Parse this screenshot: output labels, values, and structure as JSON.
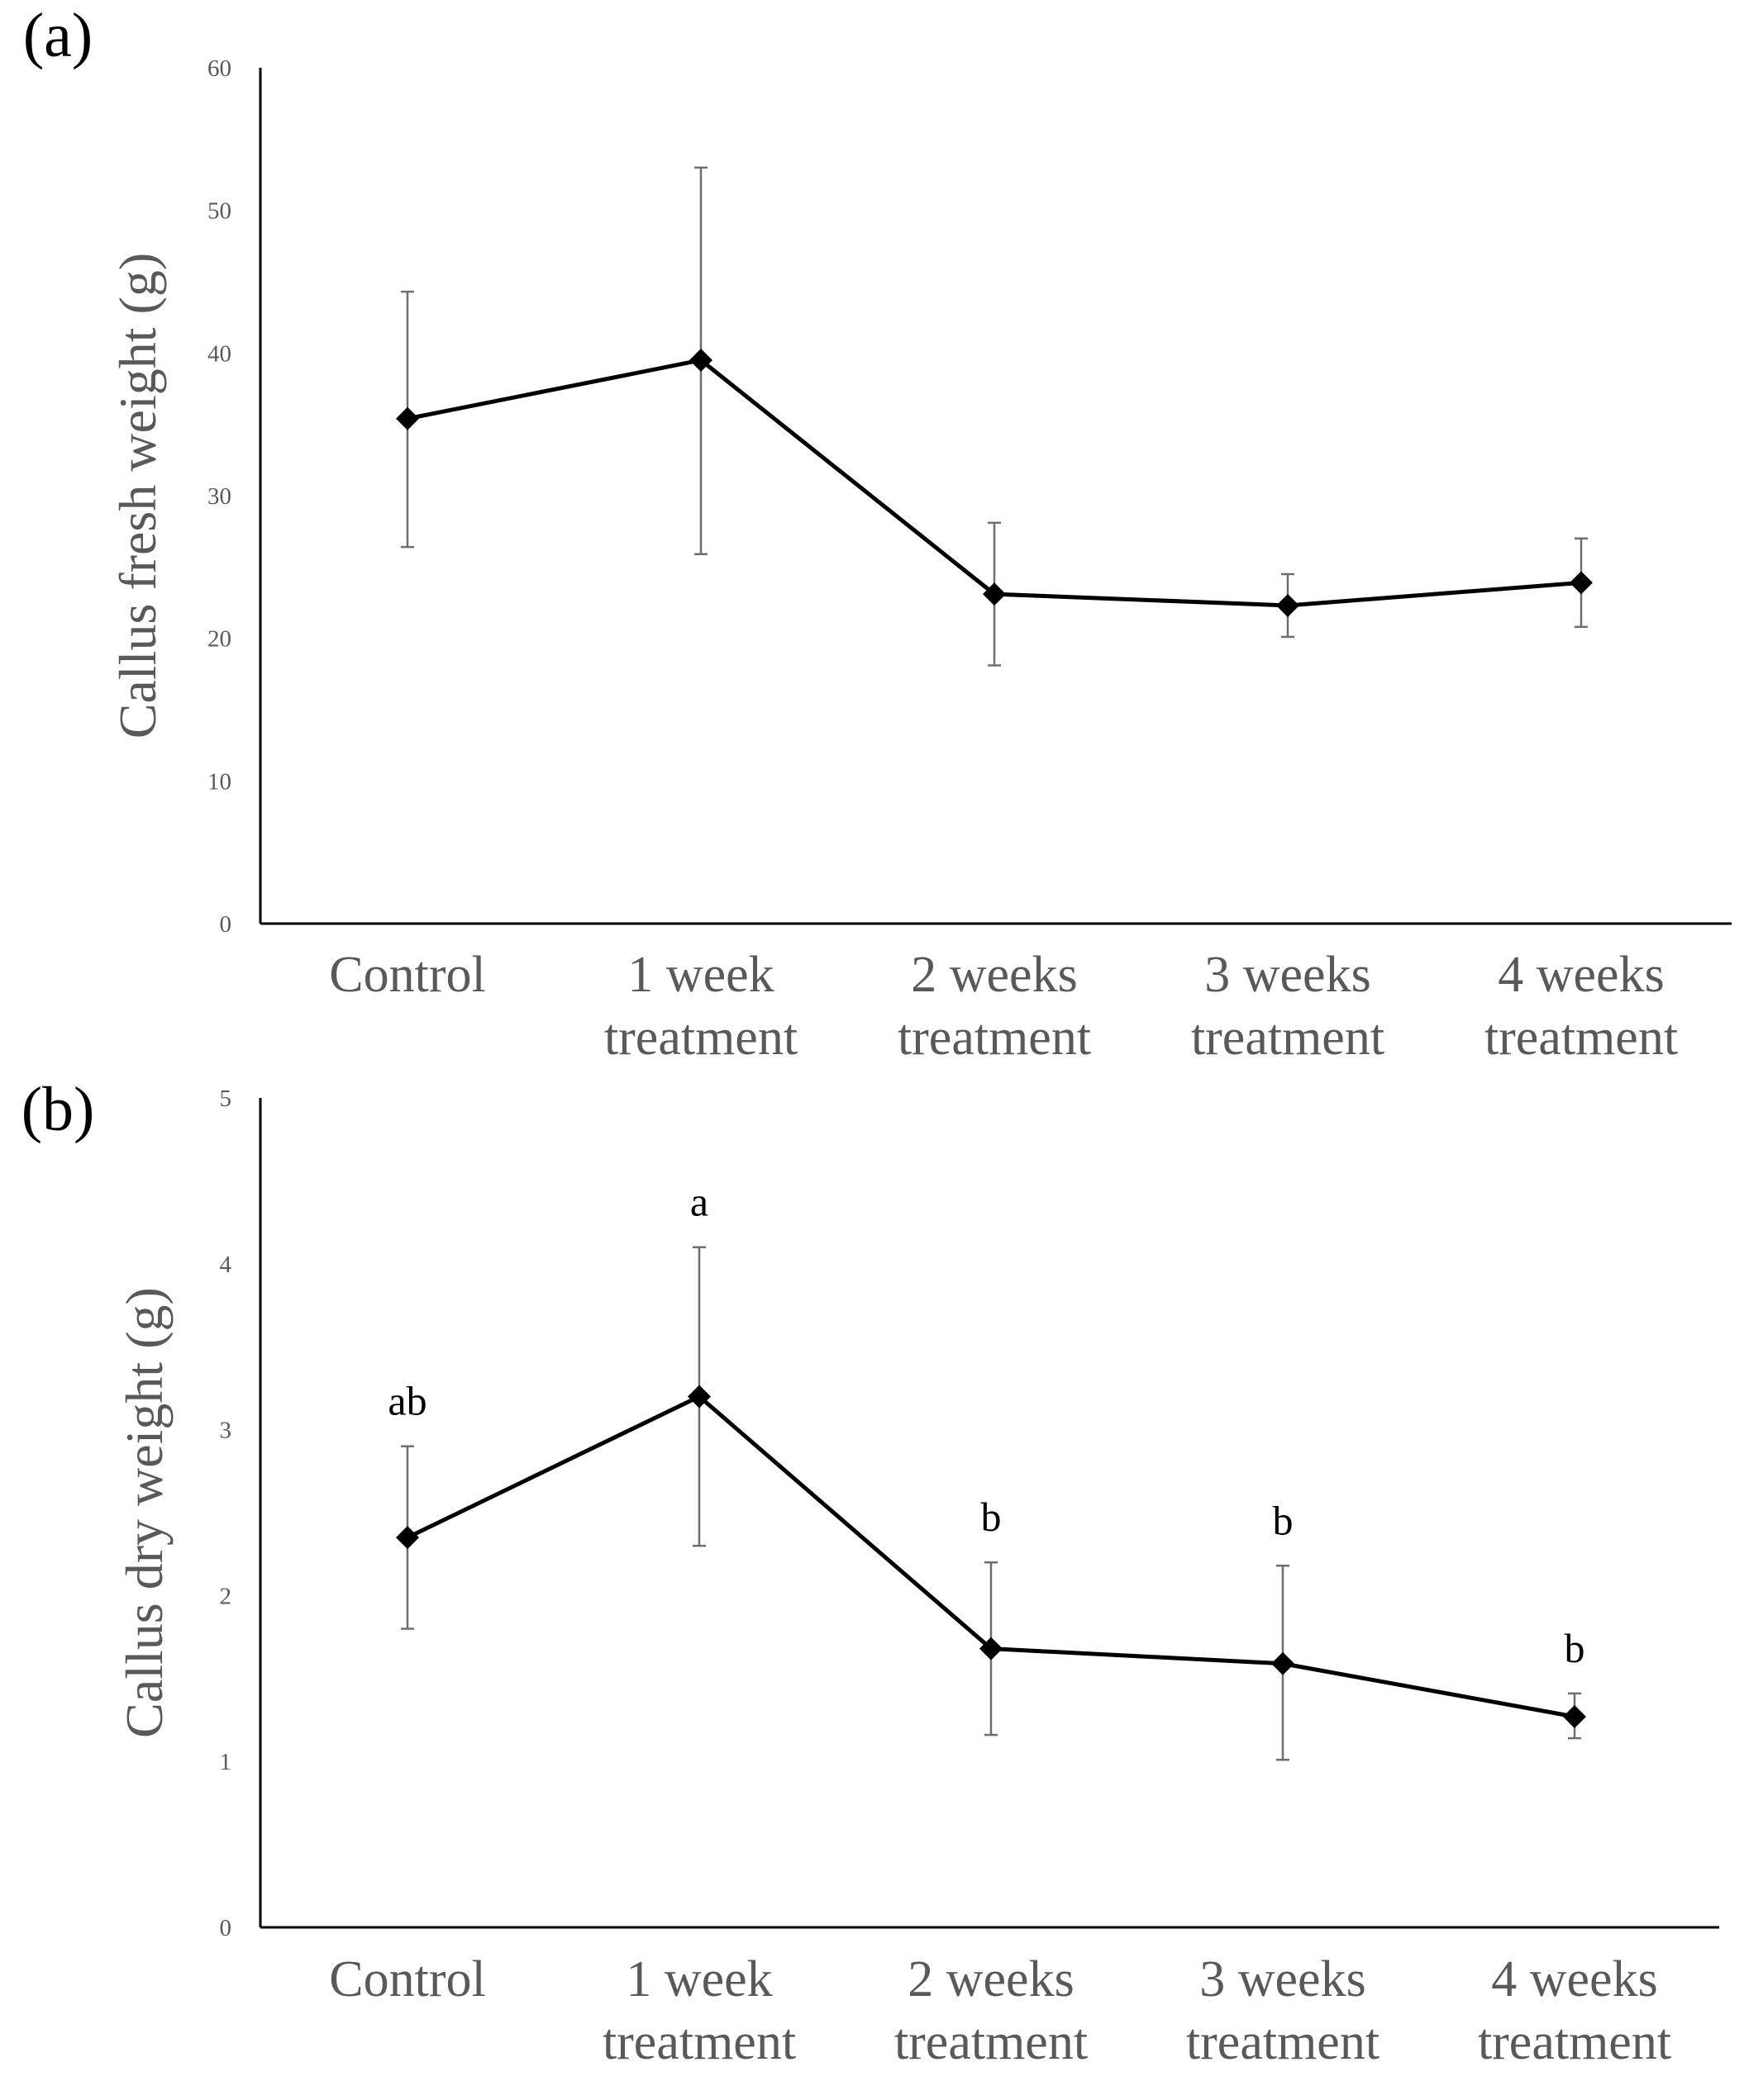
{
  "chart_data": [
    {
      "panel": "(a)",
      "type": "line",
      "categories": [
        [
          "Control"
        ],
        [
          "1 week",
          "treatment"
        ],
        [
          "2 weeks",
          "treatment"
        ],
        [
          "3 weeks",
          "treatment"
        ],
        [
          "4 weeks",
          "treatment"
        ]
      ],
      "values": [
        35.4,
        39.5,
        23.1,
        22.3,
        23.9
      ],
      "error_upper": [
        44.3,
        53.0,
        28.1,
        24.5,
        27.0
      ],
      "error_lower": [
        26.4,
        25.9,
        18.1,
        20.1,
        20.8
      ],
      "significance": [],
      "ylabel": "Callus fresh weight (g)",
      "xlabel": "",
      "ylim": [
        0,
        60
      ],
      "yticks": [
        0,
        10,
        20,
        30,
        40,
        50,
        60
      ],
      "grid": false
    },
    {
      "panel": "(b)",
      "type": "line",
      "categories": [
        [
          "Control"
        ],
        [
          "1 week",
          "treatment"
        ],
        [
          "2 weeks",
          "treatment"
        ],
        [
          "3 weeks",
          "treatment"
        ],
        [
          "4 weeks",
          "treatment"
        ]
      ],
      "values": [
        2.35,
        3.2,
        1.68,
        1.59,
        1.27
      ],
      "error_upper": [
        2.9,
        4.1,
        2.2,
        2.18,
        1.41
      ],
      "error_lower": [
        1.8,
        2.3,
        1.16,
        1.01,
        1.14
      ],
      "significance": [
        "ab",
        "a",
        "b",
        "b",
        "b"
      ],
      "ylabel": "Callus dry weight (g)",
      "xlabel": "",
      "ylim": [
        0,
        5
      ],
      "yticks": [
        0,
        1,
        2,
        3,
        4,
        5
      ],
      "grid": false
    }
  ]
}
